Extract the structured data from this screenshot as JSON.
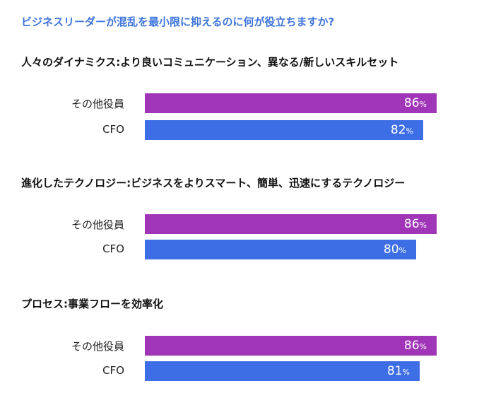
{
  "chart_data": {
    "type": "bar",
    "orientation": "horizontal",
    "title": "ビジネスリーダーが混乱を最小限に抑えるのに何が役立ちますか?",
    "unit": "%",
    "xlim": [
      0,
      100
    ],
    "grid": false,
    "legend": "none",
    "colors": {
      "title": "#3d74dc",
      "その他役員": "#a035b8",
      "CFO": "#3d6ee6"
    },
    "groups": [
      {
        "name": "人々のダイナミクス:より良いコミュニケーション、異なる/新しいスキルセット",
        "bars": [
          {
            "label": "その他役員",
            "value": 86
          },
          {
            "label": "CFO",
            "value": 82
          }
        ]
      },
      {
        "name": "進化したテクノロジー:ビジネスをよりスマート、簡単、迅速にするテクノロジー",
        "bars": [
          {
            "label": "その他役員",
            "value": 86
          },
          {
            "label": "CFO",
            "value": 80
          }
        ]
      },
      {
        "name": "プロセス:事業フローを効率化",
        "bars": [
          {
            "label": "その他役員",
            "value": 86
          },
          {
            "label": "CFO",
            "value": 81
          }
        ]
      }
    ]
  }
}
